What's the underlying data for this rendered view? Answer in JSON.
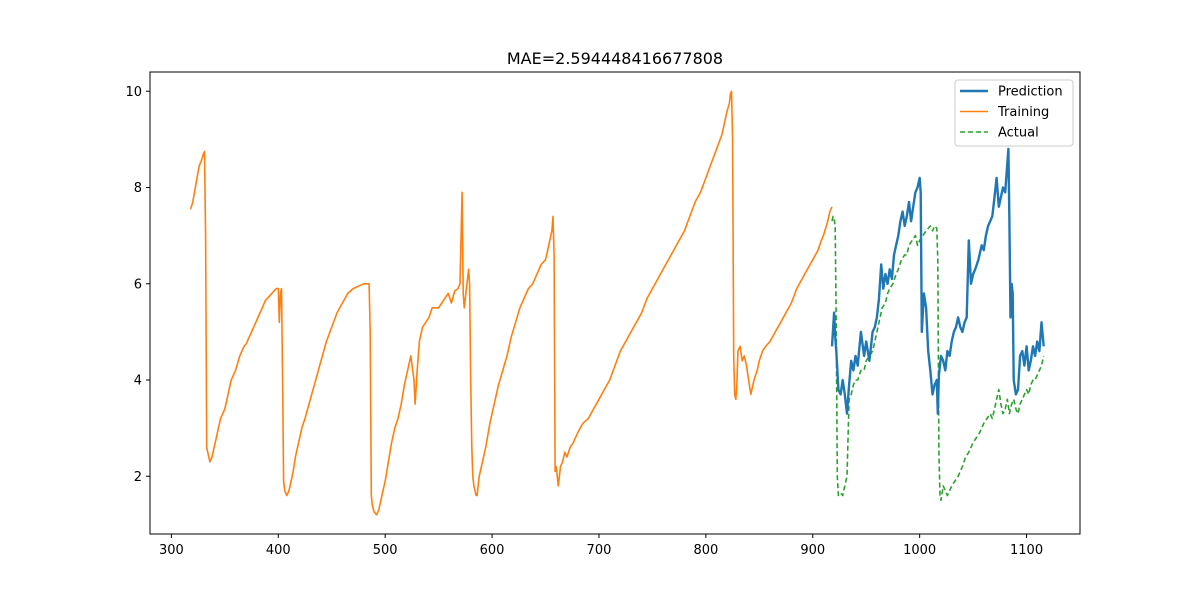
{
  "chart_data": {
    "type": "line",
    "title": "MAE=2.594448416677808",
    "xlabel": "",
    "ylabel": "",
    "xlim": [
      280,
      1150
    ],
    "ylim": [
      0.8,
      10.4
    ],
    "x_ticks": [
      300,
      400,
      500,
      600,
      700,
      800,
      900,
      1000,
      1100
    ],
    "y_ticks": [
      2,
      4,
      6,
      8,
      10
    ],
    "grid": false,
    "legend_position": "top-right",
    "series": [
      {
        "name": "Prediction",
        "color": "#1f77b4",
        "style": "solid",
        "x": [
          918,
          920,
          921,
          922,
          924,
          926,
          928,
          930,
          932,
          934,
          936,
          938,
          940,
          942,
          945,
          948,
          950,
          953,
          956,
          958,
          960,
          962,
          964,
          966,
          968,
          970,
          972,
          974,
          976,
          978,
          980,
          982,
          984,
          986,
          988,
          990,
          992,
          994,
          996,
          998,
          1000,
          1001,
          1002,
          1004,
          1006,
          1008,
          1010,
          1012,
          1014,
          1016,
          1017,
          1018,
          1020,
          1022,
          1024,
          1026,
          1028,
          1030,
          1032,
          1034,
          1036,
          1038,
          1040,
          1042,
          1044,
          1046,
          1048,
          1050,
          1052,
          1055,
          1058,
          1060,
          1062,
          1064,
          1066,
          1068,
          1070,
          1072,
          1074,
          1076,
          1078,
          1080,
          1082,
          1083,
          1084,
          1085,
          1086,
          1087,
          1088,
          1090,
          1092,
          1094,
          1096,
          1098,
          1100,
          1102,
          1104,
          1106,
          1108,
          1110,
          1112,
          1114,
          1116
        ],
        "values": [
          4.7,
          5.4,
          4.9,
          4.6,
          3.8,
          3.7,
          4.0,
          3.7,
          3.3,
          3.9,
          4.4,
          4.2,
          4.5,
          4.3,
          5.0,
          4.5,
          4.8,
          4.4,
          5.0,
          5.1,
          5.3,
          5.7,
          6.4,
          5.9,
          6.2,
          6.0,
          6.3,
          6.1,
          6.6,
          6.8,
          7.0,
          7.3,
          7.5,
          7.2,
          7.4,
          7.7,
          7.3,
          7.6,
          7.9,
          8.0,
          8.2,
          7.9,
          5.0,
          5.8,
          5.5,
          4.6,
          4.2,
          3.7,
          3.9,
          4.0,
          3.3,
          4.1,
          4.5,
          4.4,
          4.2,
          4.6,
          4.5,
          4.8,
          5.0,
          5.1,
          5.3,
          5.1,
          5.0,
          5.2,
          5.3,
          6.9,
          6.0,
          6.2,
          6.3,
          6.5,
          6.8,
          6.7,
          7.0,
          7.2,
          7.3,
          7.4,
          7.8,
          8.2,
          7.6,
          7.8,
          8.0,
          7.9,
          8.5,
          8.8,
          7.3,
          5.3,
          6.0,
          5.8,
          4.0,
          3.7,
          3.8,
          4.5,
          4.6,
          4.3,
          4.7,
          4.2,
          4.4,
          4.7,
          4.5,
          4.8,
          4.6,
          5.2,
          4.7
        ]
      },
      {
        "name": "Training",
        "color": "#ff7f0e",
        "style": "solid",
        "x": [
          318,
          320,
          322,
          324,
          326,
          328,
          330,
          331,
          332,
          333,
          334,
          335,
          336,
          338,
          340,
          342,
          344,
          346,
          348,
          350,
          352,
          354,
          356,
          358,
          360,
          362,
          364,
          366,
          368,
          370,
          372,
          374,
          376,
          378,
          380,
          382,
          384,
          386,
          388,
          390,
          392,
          394,
          396,
          398,
          400,
          401,
          402,
          403,
          404,
          405,
          406,
          407,
          408,
          410,
          412,
          414,
          416,
          418,
          420,
          422,
          425,
          430,
          435,
          440,
          445,
          450,
          455,
          460,
          465,
          470,
          475,
          480,
          485,
          486,
          487,
          488,
          489,
          490,
          492,
          494,
          496,
          498,
          500,
          503,
          506,
          509,
          512,
          515,
          518,
          521,
          524,
          527,
          528,
          530,
          532,
          535,
          538,
          541,
          544,
          547,
          550,
          553,
          556,
          559,
          562,
          565,
          568,
          570,
          572,
          573,
          574,
          576,
          578,
          579,
          580,
          581,
          582,
          583,
          584,
          585,
          586,
          588,
          590,
          594,
          598,
          602,
          606,
          610,
          614,
          618,
          622,
          626,
          630,
          634,
          638,
          642,
          646,
          650,
          652,
          654,
          656,
          657,
          658,
          659,
          660,
          662,
          664,
          666,
          668,
          670,
          673,
          676,
          680,
          685,
          690,
          695,
          700,
          705,
          710,
          715,
          720,
          725,
          730,
          735,
          740,
          745,
          750,
          755,
          760,
          765,
          770,
          775,
          780,
          785,
          790,
          795,
          800,
          805,
          810,
          815,
          818,
          820,
          822,
          823,
          824,
          825,
          826,
          827,
          828,
          829,
          830,
          832,
          834,
          836,
          838,
          840,
          842,
          845,
          848,
          850,
          853,
          856,
          860,
          865,
          870,
          875,
          880,
          885,
          890,
          895,
          900,
          905,
          908,
          910,
          912,
          914,
          916,
          918
        ],
        "values": [
          7.55,
          7.7,
          7.95,
          8.2,
          8.45,
          8.55,
          8.7,
          8.75,
          7.0,
          2.6,
          2.5,
          2.4,
          2.3,
          2.4,
          2.6,
          2.8,
          3.0,
          3.2,
          3.3,
          3.4,
          3.6,
          3.8,
          4.0,
          4.1,
          4.2,
          4.35,
          4.5,
          4.6,
          4.7,
          4.75,
          4.85,
          4.95,
          5.05,
          5.15,
          5.25,
          5.35,
          5.45,
          5.55,
          5.65,
          5.7,
          5.75,
          5.8,
          5.85,
          5.9,
          5.9,
          5.2,
          5.8,
          5.9,
          4.0,
          1.9,
          1.7,
          1.65,
          1.6,
          1.7,
          1.9,
          2.1,
          2.4,
          2.6,
          2.8,
          3.0,
          3.2,
          3.6,
          4.0,
          4.4,
          4.8,
          5.1,
          5.4,
          5.6,
          5.8,
          5.9,
          5.95,
          6.0,
          6.0,
          5.0,
          1.6,
          1.4,
          1.3,
          1.25,
          1.2,
          1.3,
          1.5,
          1.7,
          1.9,
          2.3,
          2.7,
          3.0,
          3.2,
          3.5,
          3.9,
          4.2,
          4.5,
          4.0,
          3.5,
          4.2,
          4.8,
          5.1,
          5.2,
          5.3,
          5.5,
          5.5,
          5.5,
          5.6,
          5.7,
          5.8,
          5.6,
          5.85,
          5.9,
          6.0,
          7.9,
          5.8,
          5.5,
          5.9,
          6.3,
          6.0,
          4.0,
          2.6,
          2.0,
          1.8,
          1.7,
          1.6,
          1.6,
          2.0,
          2.2,
          2.6,
          3.1,
          3.5,
          3.9,
          4.2,
          4.5,
          4.9,
          5.2,
          5.5,
          5.7,
          5.9,
          6.0,
          6.2,
          6.4,
          6.5,
          6.7,
          6.9,
          7.1,
          7.4,
          6.6,
          2.1,
          2.2,
          1.8,
          2.2,
          2.3,
          2.5,
          2.4,
          2.6,
          2.7,
          2.9,
          3.1,
          3.2,
          3.4,
          3.6,
          3.8,
          4.0,
          4.3,
          4.6,
          4.8,
          5.0,
          5.2,
          5.4,
          5.7,
          5.9,
          6.1,
          6.3,
          6.5,
          6.7,
          6.9,
          7.1,
          7.4,
          7.7,
          7.9,
          8.2,
          8.5,
          8.8,
          9.1,
          9.4,
          9.6,
          9.75,
          9.95,
          10.0,
          9.0,
          4.5,
          3.7,
          3.6,
          3.9,
          4.6,
          4.7,
          4.4,
          4.5,
          4.3,
          4.0,
          3.7,
          4.0,
          4.2,
          4.4,
          4.6,
          4.7,
          4.8,
          5.0,
          5.2,
          5.4,
          5.6,
          5.9,
          6.1,
          6.3,
          6.5,
          6.7,
          6.9,
          7.0,
          7.15,
          7.3,
          7.5,
          7.6
        ]
      },
      {
        "name": "Actual",
        "color": "#2ca02c",
        "style": "dashed",
        "x": [
          918,
          919,
          920,
          921,
          922,
          923,
          924,
          926,
          928,
          930,
          932,
          934,
          936,
          938,
          940,
          942,
          945,
          948,
          950,
          953,
          956,
          958,
          960,
          962,
          965,
          968,
          970,
          972,
          975,
          978,
          980,
          983,
          986,
          988,
          990,
          993,
          996,
          998,
          1000,
          1003,
          1006,
          1010,
          1012,
          1014,
          1016,
          1017,
          1018,
          1019,
          1020,
          1022,
          1024,
          1026,
          1028,
          1030,
          1033,
          1036,
          1040,
          1043,
          1046,
          1050,
          1053,
          1056,
          1060,
          1063,
          1066,
          1068,
          1070,
          1072,
          1074,
          1076,
          1078,
          1080,
          1082,
          1084,
          1086,
          1088,
          1090,
          1092,
          1094,
          1096,
          1098,
          1100,
          1102,
          1104,
          1106,
          1108,
          1110,
          1112,
          1114,
          1116
        ],
        "values": [
          7.3,
          7.4,
          7.35,
          7.2,
          5.0,
          2.0,
          1.6,
          1.65,
          1.6,
          1.8,
          2.0,
          3.6,
          3.7,
          3.9,
          4.0,
          4.0,
          4.2,
          4.2,
          4.4,
          4.5,
          4.6,
          4.8,
          5.0,
          5.2,
          5.5,
          5.6,
          5.8,
          5.9,
          6.0,
          6.2,
          6.3,
          6.5,
          6.6,
          6.6,
          6.8,
          6.9,
          7.0,
          6.8,
          6.9,
          7.0,
          7.1,
          7.2,
          7.1,
          7.2,
          7.15,
          6.5,
          2.5,
          1.6,
          1.5,
          1.8,
          1.7,
          1.6,
          1.7,
          1.8,
          1.9,
          2.0,
          2.2,
          2.4,
          2.5,
          2.7,
          2.8,
          2.9,
          3.1,
          3.2,
          3.3,
          3.2,
          3.4,
          3.6,
          3.8,
          3.5,
          3.3,
          3.4,
          3.6,
          3.3,
          3.5,
          3.6,
          3.4,
          3.3,
          3.5,
          3.6,
          3.7,
          3.8,
          3.7,
          3.9,
          4.0,
          4.0,
          4.1,
          4.2,
          4.3,
          4.5
        ]
      }
    ]
  }
}
